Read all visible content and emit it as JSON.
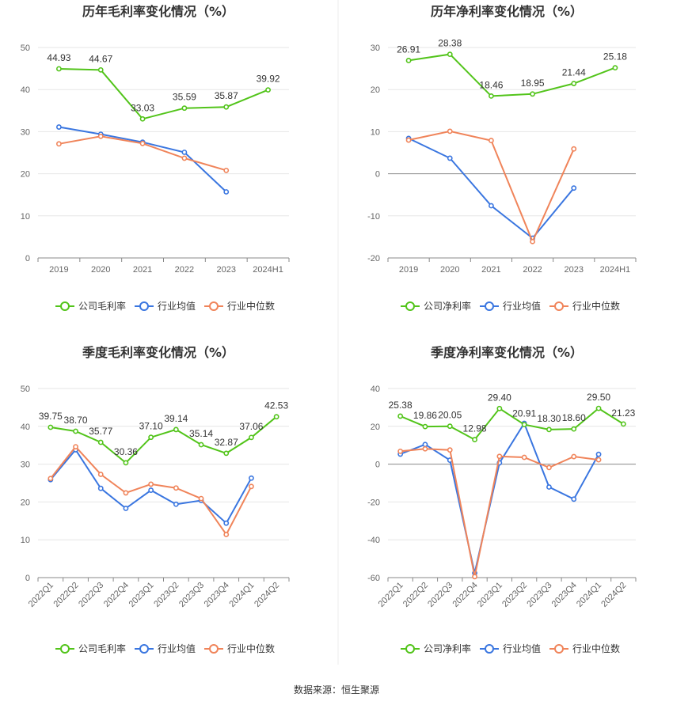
{
  "source": "数据来源：恒生聚源",
  "colors": {
    "company": "#52c41a",
    "industry_avg": "#3a76e0",
    "industry_median": "#f0845a",
    "grid": "#e6e6e6",
    "axis": "#888888",
    "tick": "#666666",
    "divider": "#eeeeee"
  },
  "legend_labels": {
    "gross": [
      "公司毛利率",
      "行业均值",
      "行业中位数"
    ],
    "net": [
      "公司净利率",
      "行业均值",
      "行业中位数"
    ]
  },
  "chart_data": [
    {
      "id": "annual-gross",
      "type": "line",
      "title": "历年毛利率变化情况（%）",
      "categories": [
        "2019",
        "2020",
        "2021",
        "2022",
        "2023",
        "2024H1"
      ],
      "ylim": [
        0,
        50
      ],
      "yticks": [
        0,
        10,
        20,
        30,
        40,
        50
      ],
      "grid": true,
      "legend_position": "bottom",
      "series": [
        {
          "name": "公司毛利率",
          "values": [
            44.93,
            44.67,
            33.03,
            35.59,
            35.87,
            39.92
          ],
          "labels": [
            "44.93",
            "44.67",
            "33.03",
            "35.59",
            "35.87",
            "39.92"
          ]
        },
        {
          "name": "行业均值",
          "values": [
            31.1,
            29.4,
            27.5,
            25.1,
            15.7,
            null
          ]
        },
        {
          "name": "行业中位数",
          "values": [
            27.1,
            28.9,
            27.2,
            23.7,
            20.8,
            null
          ]
        }
      ]
    },
    {
      "id": "annual-net",
      "type": "line",
      "title": "历年净利率变化情况（%）",
      "categories": [
        "2019",
        "2020",
        "2021",
        "2022",
        "2023",
        "2024H1"
      ],
      "ylim": [
        -20,
        30
      ],
      "yticks": [
        -20,
        -10,
        0,
        10,
        20,
        30
      ],
      "grid": true,
      "legend_position": "bottom",
      "series": [
        {
          "name": "公司净利率",
          "values": [
            26.91,
            28.38,
            18.46,
            18.95,
            21.44,
            25.18
          ],
          "labels": [
            "26.91",
            "28.38",
            "18.46",
            "18.95",
            "21.44",
            "25.18"
          ]
        },
        {
          "name": "行业均值",
          "values": [
            8.4,
            3.7,
            -7.6,
            -15.3,
            -3.4,
            null
          ]
        },
        {
          "name": "行业中位数",
          "values": [
            8.0,
            10.1,
            7.9,
            -16.1,
            5.9,
            null
          ]
        }
      ]
    },
    {
      "id": "quarterly-gross",
      "type": "line",
      "title": "季度毛利率变化情况（%）",
      "categories": [
        "2022Q1",
        "2022Q2",
        "2022Q3",
        "2022Q4",
        "2023Q1",
        "2023Q2",
        "2023Q3",
        "2023Q4",
        "2024Q1",
        "2024Q2"
      ],
      "ylim": [
        0,
        50
      ],
      "yticks": [
        0,
        10,
        20,
        30,
        40,
        50
      ],
      "grid": true,
      "legend_position": "bottom",
      "series": [
        {
          "name": "公司毛利率",
          "values": [
            39.75,
            38.7,
            35.77,
            30.36,
            37.1,
            39.14,
            35.14,
            32.87,
            37.06,
            42.53
          ],
          "labels": [
            "39.75",
            "38.70",
            "35.77",
            "30.36",
            "37.10",
            "39.14",
            "35.14",
            "32.87",
            "37.06",
            "42.53"
          ]
        },
        {
          "name": "行业均值",
          "values": [
            25.9,
            33.8,
            23.6,
            18.3,
            23.1,
            19.4,
            20.4,
            14.4,
            26.3,
            null
          ]
        },
        {
          "name": "行业中位数",
          "values": [
            26.2,
            34.6,
            27.3,
            22.4,
            24.7,
            23.7,
            20.9,
            11.4,
            24.1,
            null
          ]
        }
      ]
    },
    {
      "id": "quarterly-net",
      "type": "line",
      "title": "季度净利率变化情况（%）",
      "categories": [
        "2022Q1",
        "2022Q2",
        "2022Q3",
        "2022Q4",
        "2023Q1",
        "2023Q2",
        "2023Q3",
        "2023Q4",
        "2024Q1",
        "2024Q2"
      ],
      "ylim": [
        -60,
        40
      ],
      "yticks": [
        -60,
        -40,
        -20,
        0,
        20,
        40
      ],
      "grid": true,
      "legend_position": "bottom",
      "series": [
        {
          "name": "公司净利率",
          "values": [
            25.38,
            19.86,
            20.05,
            12.98,
            29.4,
            20.91,
            18.3,
            18.6,
            29.5,
            21.23
          ],
          "labels": [
            "25.38",
            "19.86",
            "20.05",
            "12.98",
            "29.40",
            "20.91",
            "18.30",
            "18.60",
            "29.50",
            "21.23"
          ]
        },
        {
          "name": "行业均值",
          "values": [
            5.3,
            10.4,
            2.1,
            -57.6,
            0.7,
            21.6,
            -12.1,
            -18.5,
            5.2,
            null
          ]
        },
        {
          "name": "行业中位数",
          "values": [
            6.8,
            8.1,
            7.5,
            -59.5,
            4.1,
            3.6,
            -1.8,
            4.0,
            2.3,
            null
          ]
        }
      ]
    }
  ]
}
